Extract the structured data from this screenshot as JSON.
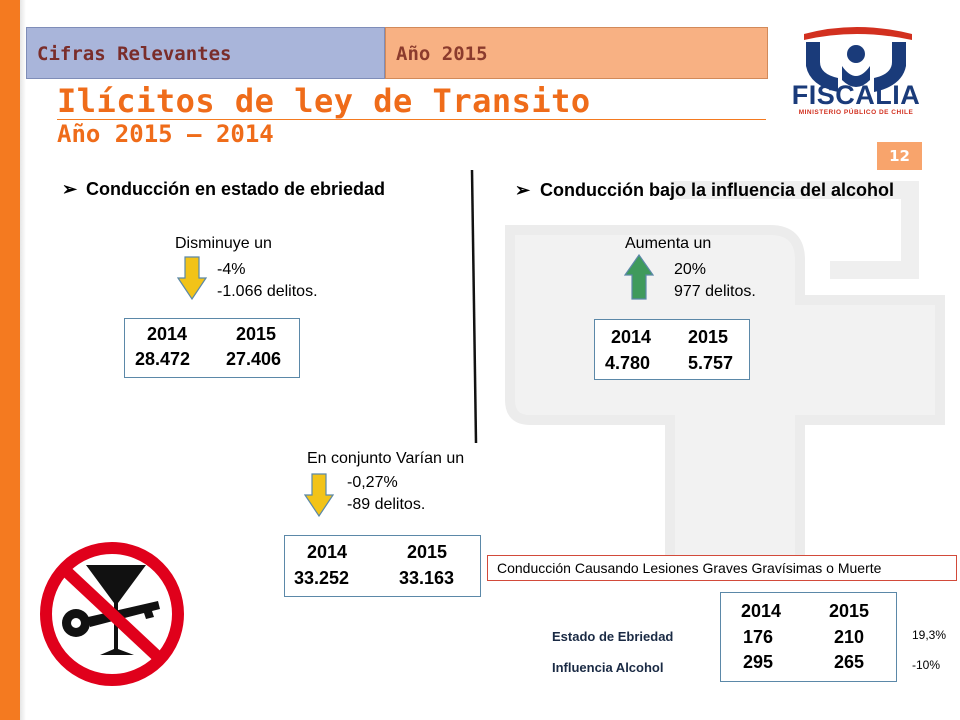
{
  "header": {
    "tab_left": "Cifras Relevantes",
    "tab_right": "Año 2015"
  },
  "title": "Ilícitos de ley de Transito",
  "subtitle": "Año 2015 – 2014",
  "logo": {
    "name": "FISCALIA",
    "subtitle": "MINISTERIO PÚBLICO DE CHILE"
  },
  "slide_number": "12",
  "colors": {
    "accent_orange": "#f47a20",
    "tab_blue": "#a9b5da",
    "tab_orange": "#f8b183",
    "arrow_down": "#f2c318",
    "arrow_up": "#3f9a5c",
    "logo_blue": "#1a3b7a",
    "logo_red": "#d2301f"
  },
  "left_section": {
    "heading": "Conducción en estado de ebriedad",
    "change_intro": "Disminuye un",
    "change_pct": "-4%",
    "change_count": "-1.066  delitos.",
    "arrow_icon": "arrow-down-icon",
    "box": {
      "year_a": "2014",
      "year_b": "2015",
      "value_a": "28.472",
      "value_b": "27.406"
    }
  },
  "right_section": {
    "heading": "Conducción bajo la influencia del alcohol",
    "change_intro": "Aumenta un",
    "change_pct": "20%",
    "change_count": "977 delitos.",
    "arrow_icon": "arrow-up-icon",
    "box": {
      "year_a": "2014",
      "year_b": "2015",
      "value_a": "4.780",
      "value_b": "5.757"
    }
  },
  "combined_section": {
    "change_intro": "En conjunto Varían un",
    "change_pct": "-0,27%",
    "change_count": "-89 delitos.",
    "arrow_icon": "arrow-down-icon",
    "box": {
      "year_a": "2014",
      "year_b": "2015",
      "value_a": "33.252",
      "value_b": "33.163"
    }
  },
  "injuries_section": {
    "heading": "Conducción Causando Lesiones Graves Gravísimas o Muerte",
    "years": [
      "2014",
      "2015"
    ],
    "rows": [
      {
        "label": "Estado de Ebriedad",
        "v2014": "176",
        "v2015": "210",
        "change": "19,3%"
      },
      {
        "label": "Influencia Alcohol",
        "v2014": "295",
        "v2015": "265",
        "change": "-10%"
      }
    ]
  },
  "no_drink_drive_sign": "no-drinking-and-driving-icon"
}
